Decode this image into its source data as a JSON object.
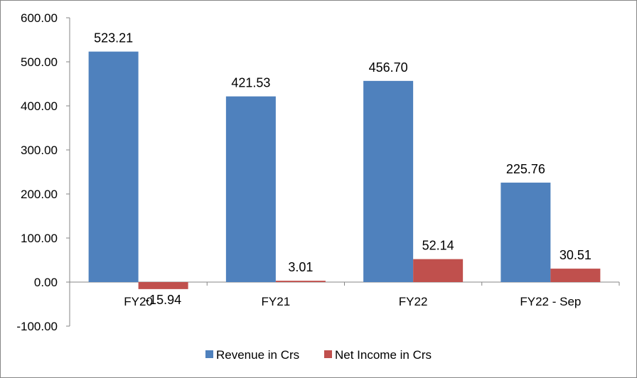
{
  "chart_data": {
    "type": "bar",
    "title": "",
    "xlabel": "",
    "ylabel": "",
    "categories": [
      "FY20",
      "FY21",
      "FY22",
      "FY22 - Sep"
    ],
    "series": [
      {
        "name": "Revenue in Crs",
        "values": [
          523.21,
          421.53,
          456.7,
          225.76
        ],
        "labels": [
          "523.21",
          "421.53",
          "456.70",
          "225.76"
        ],
        "color": "#4F81BD"
      },
      {
        "name": "Net Income in Crs",
        "values": [
          -15.94,
          3.01,
          52.14,
          30.51
        ],
        "labels": [
          "-15.94",
          "3.01",
          "52.14",
          "30.51"
        ],
        "color": "#C0504D"
      }
    ],
    "ylim": [
      -100,
      600
    ],
    "yticks": [
      -100,
      0,
      100,
      200,
      300,
      400,
      500,
      600
    ],
    "ytick_labels": [
      "-100.00",
      "0.00",
      "100.00",
      "200.00",
      "300.00",
      "400.00",
      "500.00",
      "600.00"
    ],
    "grid": false,
    "legend": "bottom"
  }
}
